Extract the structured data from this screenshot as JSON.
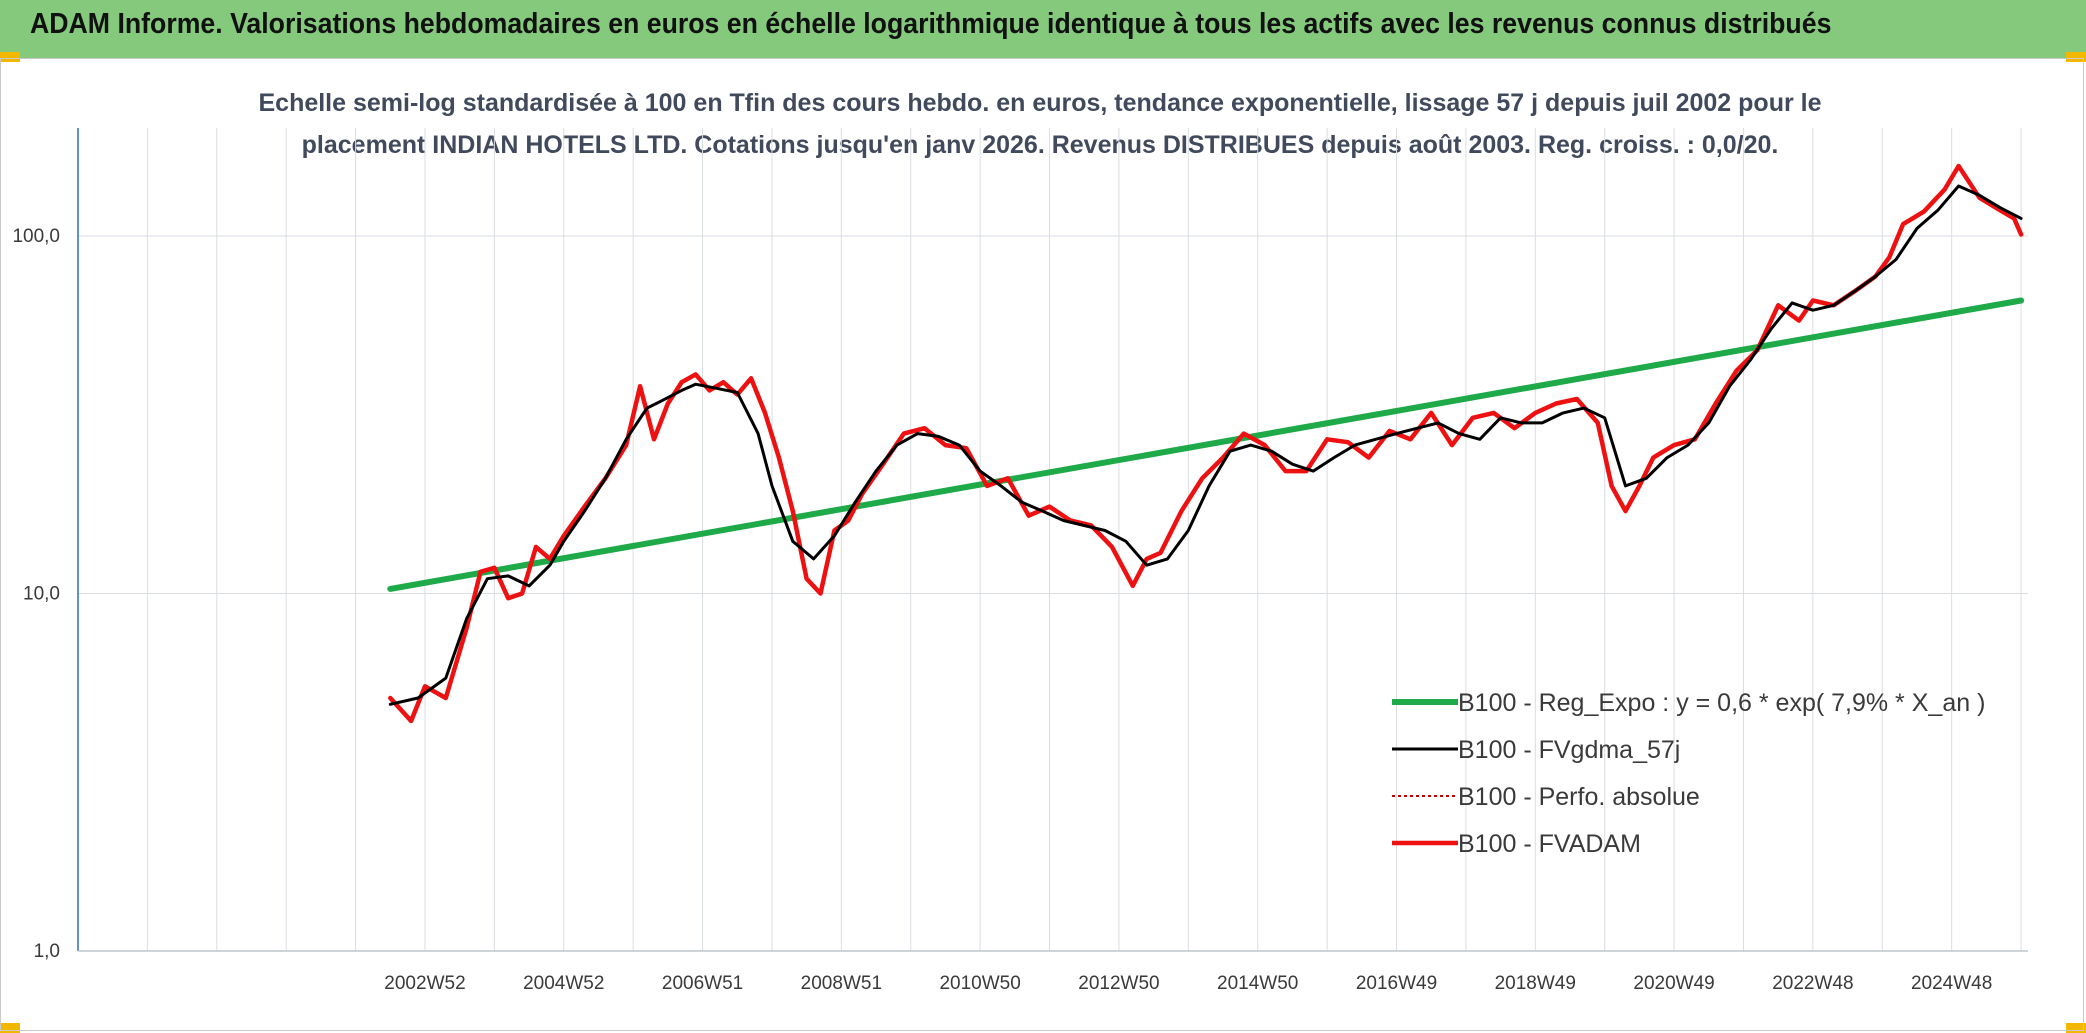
{
  "banner": {
    "title": "ADAM Informe. Valorisations hebdomadaires en euros en échelle logarithmique identique à tous les actifs avec les revenus connus distribués"
  },
  "colors": {
    "banner_bg": "#84c97c",
    "reg": "#1faa4a",
    "smooth": "#000000",
    "perf": "#c00000",
    "fvadam": "#ee1111",
    "grid": "#d9dee3",
    "axis": "#2f6fb5"
  },
  "chart_data": {
    "type": "line",
    "title_line1": "Echelle semi-log standardisée à 100 en Tfin des cours hebdo. en euros, tendance exponentielle, lissage 57 j depuis juil 2002 pour le",
    "title_line2": "placement INDIAN HOTELS LTD. Cotations jusqu'en janv 2026. Revenus DISTRIBUES depuis août 2003. Reg. croiss. : 0,0/20.",
    "y_scale": "log",
    "ylim": [
      1,
      200
    ],
    "yticks": [
      {
        "value": 1,
        "label": "1,0"
      },
      {
        "value": 10,
        "label": "10,0"
      },
      {
        "value": 100,
        "label": "100,0"
      }
    ],
    "xlim": [
      1998.0,
      2026.1
    ],
    "xticks": [
      {
        "t": 2003.0,
        "label": "2002W52"
      },
      {
        "t": 2005.0,
        "label": "2004W52"
      },
      {
        "t": 2007.0,
        "label": "2006W51"
      },
      {
        "t": 2009.0,
        "label": "2008W51"
      },
      {
        "t": 2011.0,
        "label": "2010W50"
      },
      {
        "t": 2013.0,
        "label": "2012W50"
      },
      {
        "t": 2015.0,
        "label": "2014W50"
      },
      {
        "t": 2017.0,
        "label": "2016W49"
      },
      {
        "t": 2019.0,
        "label": "2018W49"
      },
      {
        "t": 2021.0,
        "label": "2020W49"
      },
      {
        "t": 2023.0,
        "label": "2022W48"
      },
      {
        "t": 2025.0,
        "label": "2024W48"
      }
    ],
    "grid": true,
    "legend_position": "bottom-right",
    "series": [
      {
        "name": "B100 - Reg_Expo : y = 0,6 * exp( 7,9% *  X_an )",
        "style": "reg",
        "x": [
          2002.5,
          2026.0
        ],
        "values": [
          10.3,
          66.0
        ]
      },
      {
        "name": "B100 - FVgdma_57j",
        "style": "smooth",
        "x": [
          2002.5,
          2002.9,
          2003.3,
          2003.6,
          2003.9,
          2004.2,
          2004.5,
          2004.8,
          2005.0,
          2005.3,
          2005.6,
          2005.9,
          2006.2,
          2006.4,
          2006.7,
          2006.9,
          2007.2,
          2007.5,
          2007.8,
          2008.0,
          2008.3,
          2008.6,
          2008.9,
          2009.2,
          2009.5,
          2009.8,
          2010.1,
          2010.4,
          2010.7,
          2011.0,
          2011.3,
          2011.6,
          2011.9,
          2012.2,
          2012.5,
          2012.8,
          2013.1,
          2013.4,
          2013.7,
          2014.0,
          2014.3,
          2014.6,
          2014.9,
          2015.2,
          2015.5,
          2015.8,
          2016.1,
          2016.4,
          2016.7,
          2017.0,
          2017.3,
          2017.6,
          2017.9,
          2018.2,
          2018.5,
          2018.8,
          2019.1,
          2019.4,
          2019.7,
          2020.0,
          2020.3,
          2020.6,
          2020.9,
          2021.2,
          2021.5,
          2021.8,
          2022.1,
          2022.4,
          2022.7,
          2023.0,
          2023.3,
          2023.6,
          2023.9,
          2024.2,
          2024.5,
          2024.8,
          2025.1,
          2025.4,
          2025.7,
          2026.0
        ],
        "values": [
          4.9,
          5.1,
          5.8,
          8.5,
          11.0,
          11.2,
          10.5,
          12.0,
          14.0,
          17.0,
          21.0,
          27.0,
          33.0,
          34.5,
          37.0,
          38.5,
          37.5,
          36.5,
          28.0,
          20.0,
          14.0,
          12.5,
          14.5,
          18.0,
          22.0,
          26.0,
          28.0,
          27.5,
          26.0,
          22.0,
          20.0,
          18.0,
          17.0,
          16.0,
          15.5,
          15.0,
          14.0,
          12.0,
          12.5,
          15.0,
          20.0,
          25.0,
          26.0,
          25.0,
          23.0,
          22.0,
          24.0,
          26.0,
          27.0,
          28.0,
          29.0,
          30.0,
          28.0,
          27.0,
          31.0,
          30.0,
          30.0,
          32.0,
          33.0,
          31.0,
          20.0,
          21.0,
          24.0,
          26.0,
          30.0,
          38.0,
          45.0,
          55.0,
          65.0,
          62.0,
          64.0,
          70.0,
          77.0,
          86.0,
          105.0,
          118.0,
          138.0,
          130.0,
          120.0,
          112.0
        ]
      },
      {
        "name": "B100 - Perfo. absolue",
        "style": "perf",
        "x": [],
        "values": []
      },
      {
        "name": "B100 - FVADAM",
        "style": "fvadam",
        "x": [
          2002.5,
          2002.8,
          2003.0,
          2003.3,
          2003.6,
          2003.8,
          2004.0,
          2004.2,
          2004.4,
          2004.6,
          2004.8,
          2005.0,
          2005.3,
          2005.6,
          2005.9,
          2006.1,
          2006.3,
          2006.5,
          2006.7,
          2006.9,
          2007.1,
          2007.3,
          2007.5,
          2007.7,
          2007.9,
          2008.1,
          2008.3,
          2008.5,
          2008.7,
          2008.9,
          2009.1,
          2009.3,
          2009.6,
          2009.9,
          2010.2,
          2010.5,
          2010.8,
          2011.1,
          2011.4,
          2011.7,
          2012.0,
          2012.3,
          2012.6,
          2012.9,
          2013.2,
          2013.4,
          2013.6,
          2013.9,
          2014.2,
          2014.5,
          2014.8,
          2015.1,
          2015.4,
          2015.7,
          2016.0,
          2016.3,
          2016.6,
          2016.9,
          2017.2,
          2017.5,
          2017.8,
          2018.1,
          2018.4,
          2018.7,
          2019.0,
          2019.3,
          2019.6,
          2019.9,
          2020.1,
          2020.3,
          2020.5,
          2020.7,
          2021.0,
          2021.3,
          2021.6,
          2021.9,
          2022.2,
          2022.5,
          2022.8,
          2023.0,
          2023.3,
          2023.6,
          2023.9,
          2024.1,
          2024.3,
          2024.6,
          2024.9,
          2025.1,
          2025.4,
          2025.7,
          2025.9,
          2026.0
        ],
        "values": [
          5.1,
          4.4,
          5.5,
          5.1,
          8.0,
          11.5,
          11.8,
          9.7,
          10.0,
          13.5,
          12.5,
          14.5,
          17.5,
          21.0,
          26.0,
          38.0,
          27.0,
          34.0,
          39.0,
          41.0,
          37.0,
          39.0,
          36.0,
          40.0,
          32.0,
          24.0,
          17.0,
          11.0,
          10.0,
          15.0,
          16.0,
          19.0,
          23.0,
          28.0,
          29.0,
          26.0,
          25.5,
          20.0,
          21.0,
          16.5,
          17.5,
          16.0,
          15.5,
          13.5,
          10.5,
          12.5,
          13.0,
          17.0,
          21.0,
          24.0,
          28.0,
          26.0,
          22.0,
          22.0,
          27.0,
          26.5,
          24.0,
          28.5,
          27.0,
          32.0,
          26.0,
          31.0,
          32.0,
          29.0,
          32.0,
          34.0,
          35.0,
          30.0,
          20.0,
          17.0,
          20.0,
          24.0,
          26.0,
          27.0,
          34.0,
          42.0,
          48.0,
          64.0,
          58.0,
          66.0,
          64.0,
          70.0,
          77.0,
          87.0,
          108.0,
          117.0,
          135.0,
          157.0,
          128.0,
          118.0,
          112.0,
          101.0
        ]
      }
    ]
  }
}
